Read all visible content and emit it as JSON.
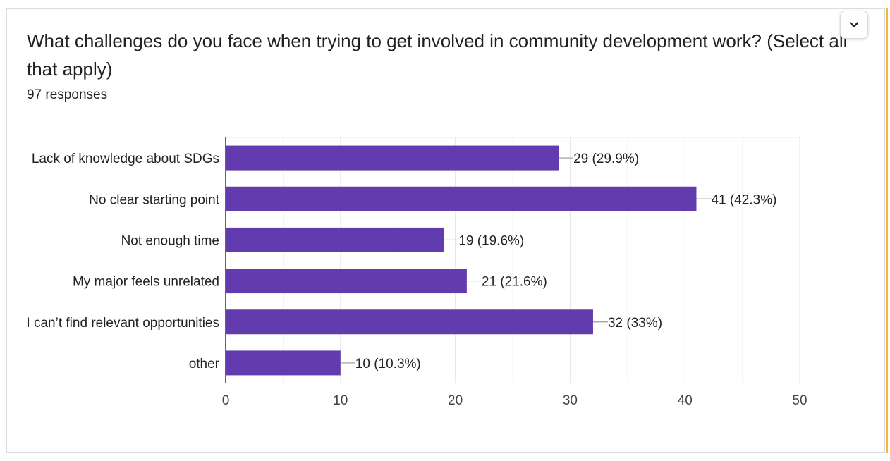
{
  "question": {
    "title": "What challenges do you face when trying to get involved in community development work? (Select all that apply)",
    "responses": "97 responses"
  },
  "colors": {
    "bar": "#623bae",
    "accent": "#f6b737",
    "grid": "#eeeeee",
    "axis": "#333333"
  },
  "expand_icon": "chevron-down-icon",
  "chart_data": {
    "type": "bar",
    "orientation": "horizontal",
    "categories": [
      "Lack of knowledge about SDGs",
      "No clear starting point",
      "Not enough time",
      "My major feels unrelated",
      "I can’t find relevant opportunities",
      "other"
    ],
    "values": [
      29,
      41,
      19,
      21,
      32,
      10
    ],
    "labels": [
      "29 (29.9%)",
      "41 (42.3%)",
      "19 (19.6%)",
      "21 (21.6%)",
      "32 (33%)",
      "10 (10.3%)"
    ],
    "xlim": [
      0,
      50
    ],
    "xticks": [
      0,
      10,
      20,
      30,
      40,
      50
    ],
    "grid": true,
    "xlabel": "",
    "ylabel": ""
  }
}
